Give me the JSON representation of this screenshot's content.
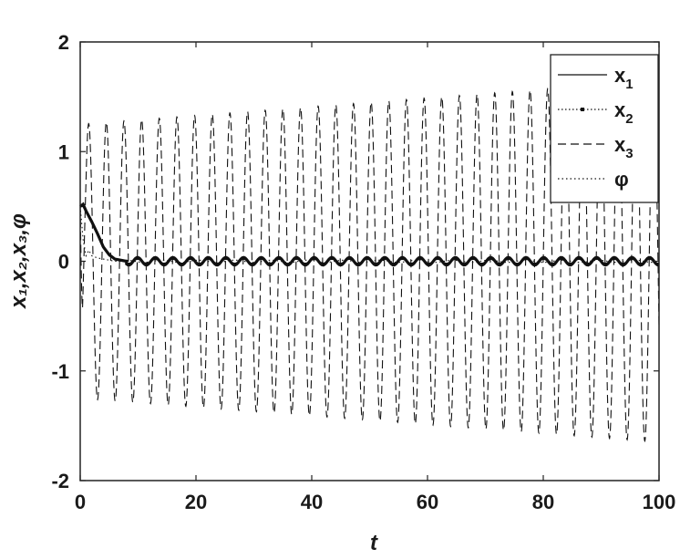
{
  "chart_data": {
    "type": "line",
    "xlabel": "t",
    "ylabel": "x₁,x₂,x₃,φ",
    "xlim": [
      0,
      100
    ],
    "ylim": [
      -2,
      2
    ],
    "xticks": [
      "0",
      "20",
      "40",
      "60",
      "80",
      "100"
    ],
    "yticks": [
      "-2",
      "-1",
      "0",
      "1",
      "2"
    ],
    "grid": false,
    "legend_position": "top-right",
    "series": [
      {
        "name": "x₁",
        "style": "solid",
        "x": [
          0,
          0.5,
          1,
          2,
          3,
          4,
          5,
          6,
          8,
          10,
          20,
          40,
          60,
          80,
          100
        ],
        "y": [
          0.5,
          0.5,
          0.45,
          0.35,
          0.24,
          0.12,
          0.05,
          0.02,
          0.0,
          0.0,
          0.0,
          0.0,
          0.0,
          0.0,
          0.0
        ]
      },
      {
        "name": "x₂",
        "style": "dotted-marker",
        "x": [
          0,
          0.5,
          1,
          2,
          3,
          4,
          5,
          6,
          8,
          10,
          20,
          40,
          60,
          80,
          100
        ],
        "y": [
          0.5,
          0.52,
          0.46,
          0.36,
          0.25,
          0.13,
          0.06,
          0.02,
          0.0,
          0.0,
          0.0,
          0.0,
          0.0,
          0.0,
          0.0
        ]
      },
      {
        "name": "x₃",
        "style": "dashed",
        "period": 3.05,
        "amplitude_start": 1.25,
        "amplitude_end": 1.65,
        "x_range": [
          0,
          100
        ]
      },
      {
        "name": "φ",
        "style": "dotted",
        "x": [
          0,
          0.5,
          1,
          1.5,
          2,
          3,
          4,
          5,
          6,
          8,
          10,
          20,
          40,
          60,
          80,
          100
        ],
        "y": [
          0.5,
          0.2,
          0.05,
          0.1,
          0.05,
          0.03,
          0.02,
          0.01,
          0.0,
          0.0,
          0.0,
          0.0,
          0.0,
          0.0,
          0.0,
          0.0
        ]
      }
    ]
  },
  "legend": {
    "items": [
      {
        "label": "x",
        "sub": "1",
        "style": "solid"
      },
      {
        "label": "x",
        "sub": "2",
        "style": "dotted-marker"
      },
      {
        "label": "x",
        "sub": "3",
        "style": "dashed"
      },
      {
        "label": "φ",
        "sub": "",
        "style": "dotted"
      }
    ]
  },
  "colors": {
    "line": "#111111",
    "axis": "#222222",
    "background": "#ffffff"
  }
}
